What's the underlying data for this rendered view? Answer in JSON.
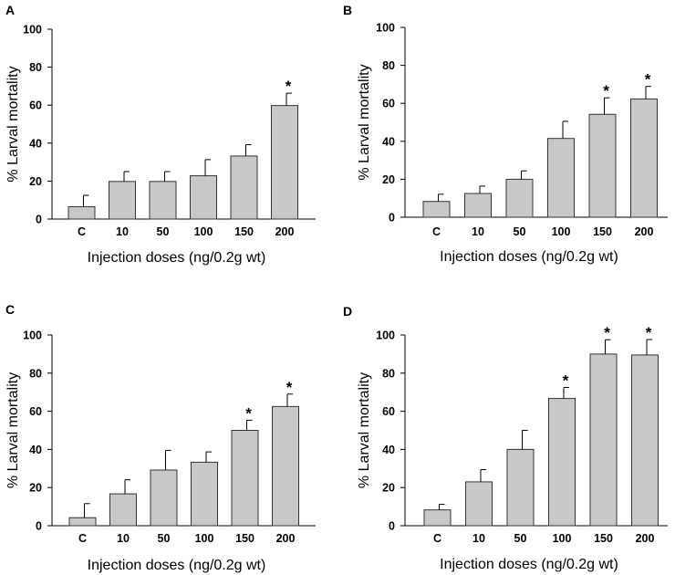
{
  "colors": {
    "bar": "#c8c8c8",
    "bar_stroke": "#333333",
    "axis": "#000000"
  },
  "chart_data": [
    {
      "type": "bar",
      "panel": "A",
      "categories": [
        "C",
        "10",
        "50",
        "100",
        "150",
        "200"
      ],
      "values": [
        6.5,
        19.8,
        19.8,
        22.8,
        33.2,
        59.8
      ],
      "errors": [
        6.0,
        5.2,
        5.2,
        8.5,
        6.0,
        6.5
      ],
      "significant": [
        "",
        "",
        "",
        "",
        "",
        "*"
      ],
      "yticks": [
        "0",
        "20",
        "40",
        "60",
        "80",
        "100"
      ],
      "ylim": [
        0,
        100
      ],
      "ylabel": "% Larval mortality",
      "xlabel": "Injection doses (ng/0.2g wt)"
    },
    {
      "type": "bar",
      "panel": "B",
      "categories": [
        "C",
        "10",
        "50",
        "100",
        "150",
        "200"
      ],
      "values": [
        8.3,
        12.5,
        20.0,
        41.5,
        54.2,
        62.3
      ],
      "errors": [
        3.8,
        3.9,
        4.4,
        9.0,
        8.7,
        6.6
      ],
      "significant": [
        "",
        "",
        "",
        "",
        "*",
        "*"
      ],
      "yticks": [
        "0",
        "20",
        "40",
        "60",
        "80",
        "100"
      ],
      "ylim": [
        0,
        100
      ],
      "ylabel": "% Larval mortality",
      "xlabel": "Injection doses (ng/0.2g wt)"
    },
    {
      "type": "bar",
      "panel": "C",
      "categories": [
        "C",
        "10",
        "50",
        "100",
        "150",
        "200"
      ],
      "values": [
        4.2,
        16.7,
        29.2,
        33.3,
        50.0,
        62.5
      ],
      "errors": [
        7.4,
        7.4,
        10.3,
        5.4,
        5.3,
        6.5
      ],
      "significant": [
        "",
        "",
        "",
        "",
        "*",
        "*"
      ],
      "yticks": [
        "0",
        "20",
        "40",
        "60",
        "80",
        "100"
      ],
      "ylim": [
        0,
        100
      ],
      "ylabel": "% Larval mortality",
      "xlabel": "Injection doses (ng/0.2g wt)"
    },
    {
      "type": "bar",
      "panel": "D",
      "categories": [
        "C",
        "10",
        "50",
        "100",
        "150",
        "200"
      ],
      "values": [
        8.3,
        23.0,
        40.0,
        66.7,
        90.0,
        89.5
      ],
      "errors": [
        2.9,
        6.4,
        10.0,
        5.8,
        7.5,
        8.1
      ],
      "significant": [
        "",
        "",
        "",
        "*",
        "*",
        "*"
      ],
      "yticks": [
        "0",
        "20",
        "40",
        "60",
        "80",
        "100"
      ],
      "ylim": [
        0,
        100
      ],
      "ylabel": "% Larval mortality",
      "xlabel": "Injection doses (ng/0.2g wt)"
    }
  ]
}
